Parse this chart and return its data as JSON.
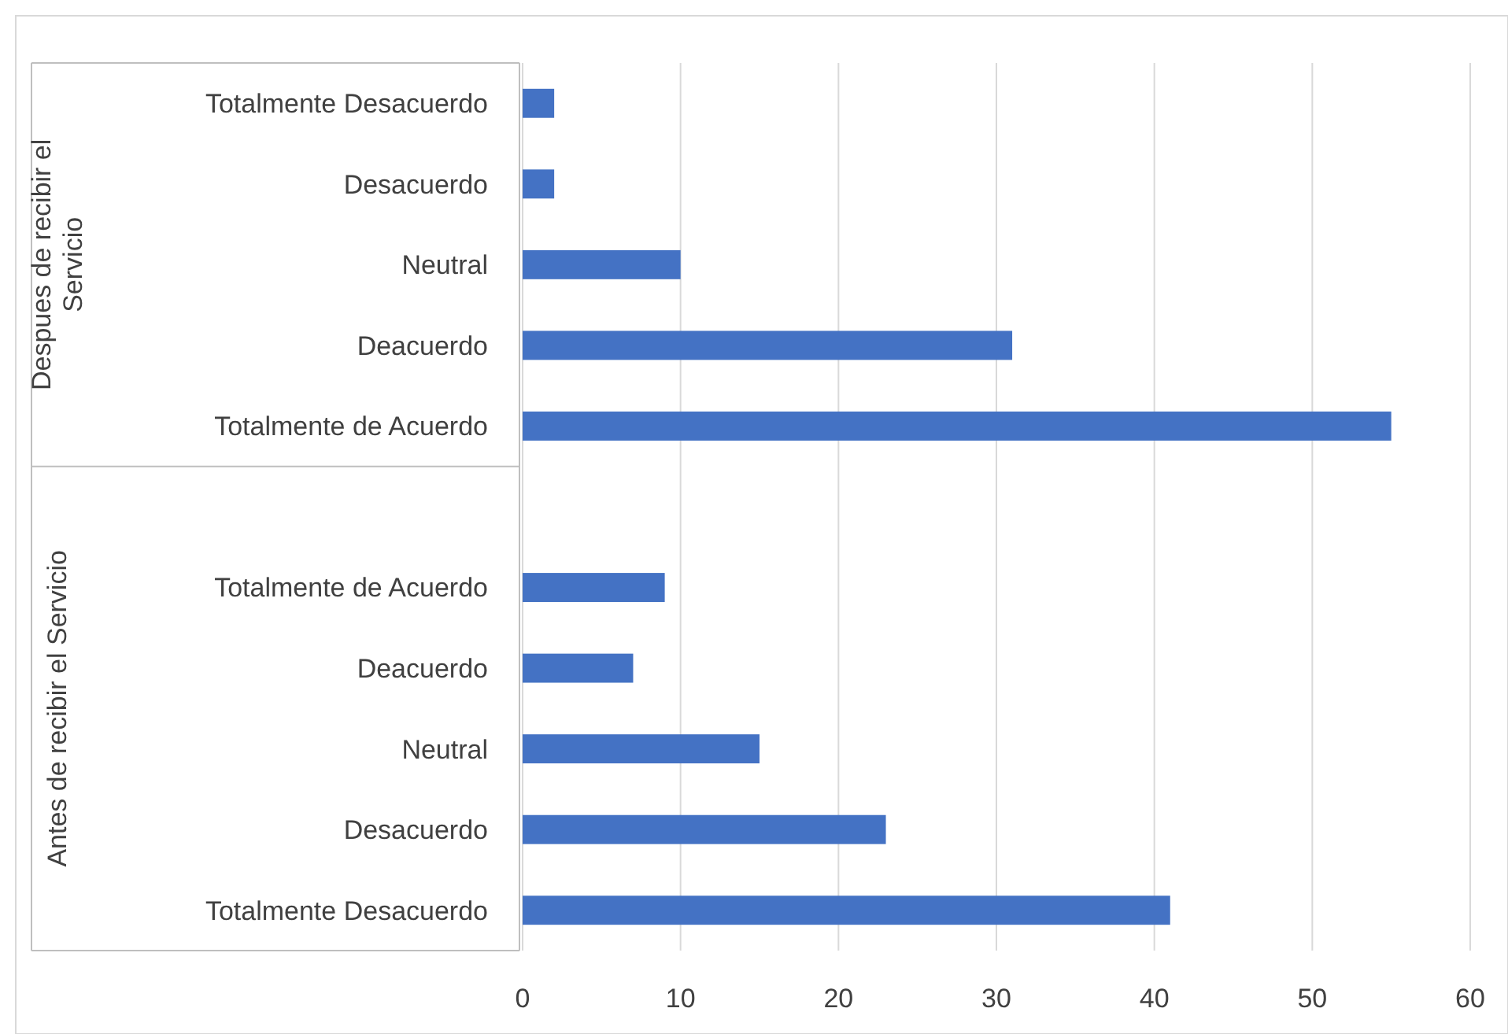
{
  "chart_data": {
    "type": "bar",
    "orientation": "horizontal",
    "categories": [
      "Totalmente Desacuerdo",
      "Desacuerdo",
      "Neutral",
      "Deacuerdo",
      "Totalmente de Acuerdo",
      null,
      "Totalmente de Acuerdo",
      "Deacuerdo",
      "Neutral",
      "Desacuerdo",
      "Totalmente Desacuerdo"
    ],
    "values": [
      2,
      2,
      10,
      31,
      55,
      null,
      9,
      7,
      15,
      23,
      41
    ],
    "color": "#4472c4",
    "xlim": [
      0,
      60
    ],
    "xticks": [
      0,
      10,
      20,
      30,
      40,
      50,
      60
    ],
    "grid": "x",
    "annotations": [
      "Despues de recibir el Servicio",
      "Antes de recibir el Servicio"
    ]
  }
}
